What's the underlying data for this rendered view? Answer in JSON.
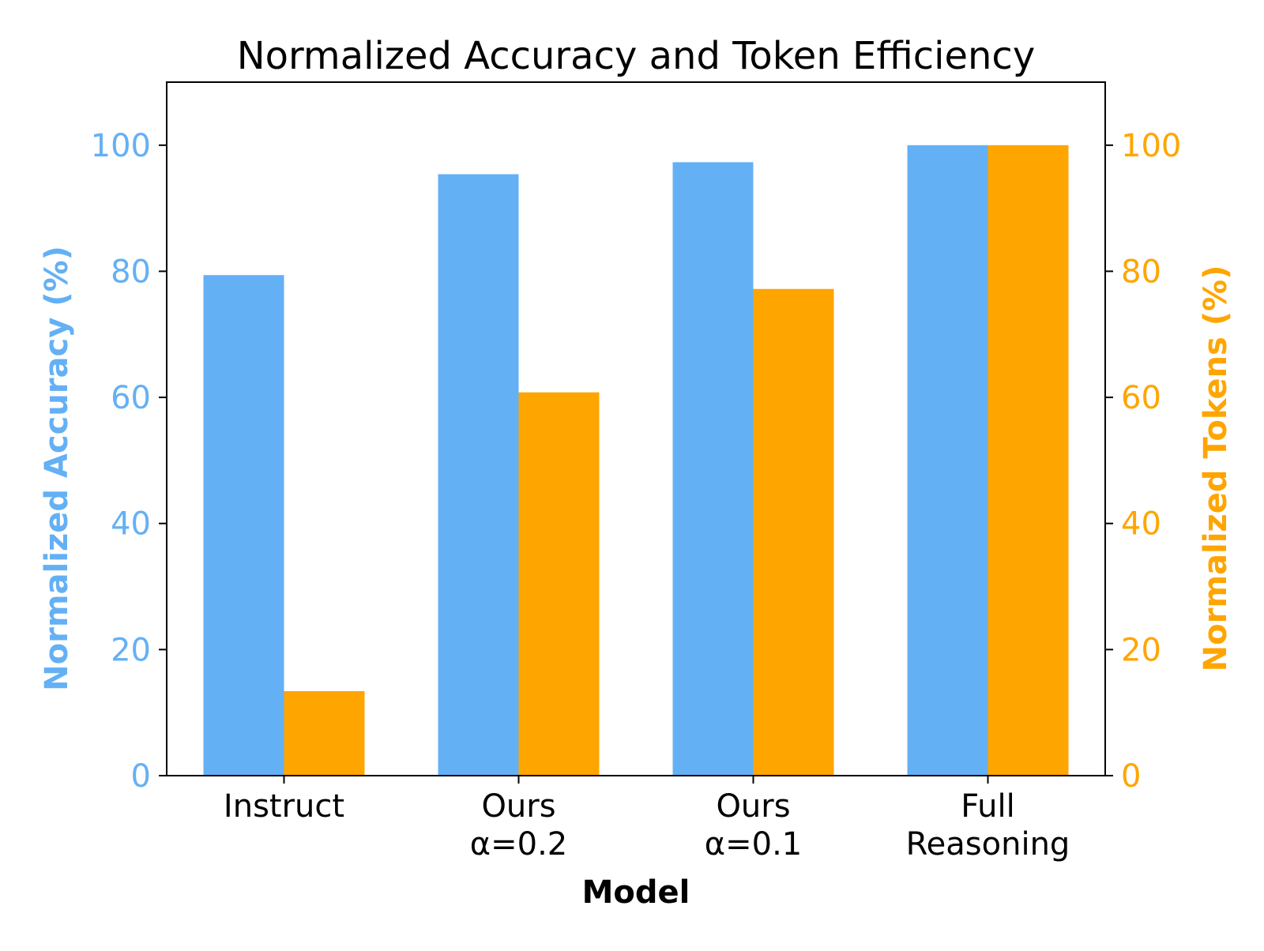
{
  "chart_data": {
    "type": "bar",
    "title": "Normalized Accuracy and Token Efficiency",
    "xlabel": "Model",
    "categories": [
      [
        "Instruct"
      ],
      [
        "Ours",
        "α=0.2"
      ],
      [
        "Ours",
        "α=0.1"
      ],
      [
        "Full",
        "Reasoning"
      ]
    ],
    "y_left": {
      "label": "Normalized Accuracy (%)",
      "ylim": [
        0,
        110
      ],
      "ticks": [
        "0",
        "20",
        "40",
        "60",
        "80",
        "100"
      ],
      "color": "#64b0f5"
    },
    "y_right": {
      "label": "Normalized Tokens (%)",
      "ylim": [
        0,
        110
      ],
      "ticks": [
        "0",
        "20",
        "40",
        "60",
        "80",
        "100"
      ],
      "color": "#ffa500"
    },
    "series": [
      {
        "axis": "left",
        "color": "#64b0f5",
        "values": [
          79.4,
          95.4,
          97.3,
          100.0
        ]
      },
      {
        "axis": "right",
        "color": "#ffa500",
        "values": [
          13.4,
          60.8,
          77.2,
          100.0
        ]
      }
    ],
    "grid": false
  }
}
